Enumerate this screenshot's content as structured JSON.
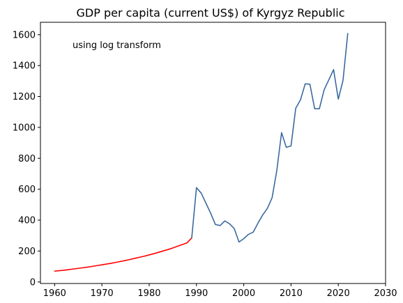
{
  "chart_data": {
    "type": "line",
    "title": "GDP per capita (current US$) of Kyrgyz Republic",
    "xlabel": "",
    "ylabel": "",
    "annotation": "using log transform",
    "xlim": [
      1957,
      2030
    ],
    "ylim": [
      -10,
      1680
    ],
    "xticks": [
      1960,
      1970,
      1980,
      1990,
      2000,
      2010,
      2020,
      2030
    ],
    "yticks": [
      0,
      200,
      400,
      600,
      800,
      1000,
      1200,
      1400,
      1600
    ],
    "grid": false,
    "series": [
      {
        "color": "#ff0000",
        "x": [
          1960,
          1961,
          1962,
          1963,
          1964,
          1965,
          1966,
          1967,
          1968,
          1969,
          1970,
          1971,
          1972,
          1973,
          1974,
          1975,
          1976,
          1977,
          1978,
          1979,
          1980,
          1981,
          1982,
          1983,
          1984,
          1985,
          1986,
          1987,
          1988,
          1989
        ],
        "y": [
          70,
          73,
          76,
          80,
          84,
          88,
          92,
          96,
          101,
          106,
          111,
          116,
          121,
          127,
          133,
          139,
          146,
          153,
          160,
          167,
          175,
          183,
          192,
          201,
          210,
          220,
          231,
          242,
          253,
          285
        ]
      },
      {
        "color": "#3a6aa0",
        "x": [
          1989,
          1990,
          1991,
          1992,
          1993,
          1994,
          1995,
          1996,
          1997,
          1998,
          1999,
          2000,
          2001,
          2002,
          2003,
          2004,
          2005,
          2006,
          2007,
          2008,
          2009,
          2010,
          2011,
          2012,
          2013,
          2014,
          2015,
          2016,
          2017,
          2018,
          2019,
          2020,
          2021,
          2022
        ],
        "y": [
          285,
          610,
          575,
          510,
          445,
          372,
          365,
          395,
          376,
          345,
          258,
          280,
          308,
          322,
          380,
          433,
          476,
          545,
          722,
          966,
          871,
          880,
          1124,
          1178,
          1282,
          1279,
          1121,
          1121,
          1243,
          1308,
          1374,
          1183,
          1304,
          1607
        ]
      }
    ]
  }
}
